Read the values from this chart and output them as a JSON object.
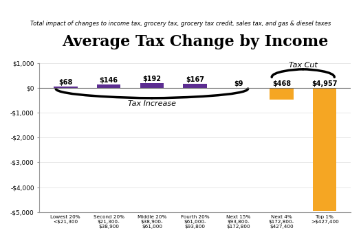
{
  "title": "Average Tax Change by Income",
  "subtitle": "Total impact of changes to income tax, grocery tax, grocery tax credit, sales tax, and gas & diesel taxes",
  "categories": [
    "Lowest 20%\n<$21,300",
    "Second 20%\n$21,300-\n$38,900",
    "Middle 20%\n$38,900-\n$61,000",
    "Fourth 20%\n$61,000-\n$93,800",
    "Next 15%\n$93,800-\n$172,800",
    "Next 4%\n$172,800-\n$427,400",
    "Top 1%\n>$427,400"
  ],
  "values": [
    68,
    146,
    192,
    167,
    9,
    -468,
    -4957
  ],
  "bar_colors": [
    "#5c2d91",
    "#5c2d91",
    "#5c2d91",
    "#5c2d91",
    "#5c2d91",
    "#f5a623",
    "#f5a623"
  ],
  "value_labels": [
    "$68",
    "$146",
    "$192",
    "$167",
    "$9",
    "$468",
    "$4,957"
  ],
  "ylim": [
    -5000,
    1000
  ],
  "yticks": [
    1000,
    0,
    -1000,
    -2000,
    -3000,
    -4000,
    -5000
  ],
  "ytick_labels": [
    "$1,000",
    "$0",
    "-$1,000",
    "-$2,000",
    "-$3,000",
    "-$4,000",
    "-$5,000"
  ],
  "tax_increase_label": "Tax Increase",
  "tax_cut_label": "Tax Cut",
  "bg_color": "#ffffff",
  "bar_width": 0.55,
  "title_fontsize": 16,
  "subtitle_fontsize": 6,
  "label_fontsize": 7,
  "tick_fontsize": 6.5,
  "xtick_fontsize": 5.2
}
